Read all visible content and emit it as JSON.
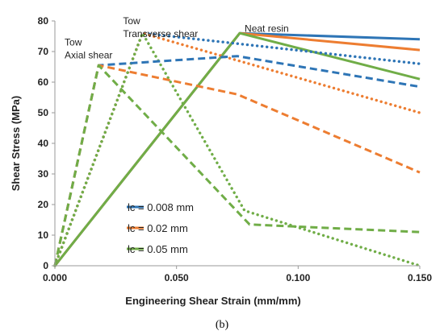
{
  "chart_data": {
    "type": "line",
    "xlabel": "Engineering Shear Strain (mm/mm)",
    "ylabel": "Shear Stress (MPa)",
    "xlim": [
      0,
      0.15
    ],
    "ylim": [
      0,
      80
    ],
    "x_ticks": [
      "0.000",
      "0.050",
      "0.100",
      "0.150"
    ],
    "x_tick_values": [
      0,
      0.05,
      0.1,
      0.15
    ],
    "y_ticks": [
      "0",
      "10",
      "20",
      "30",
      "40",
      "50",
      "60",
      "70",
      "80"
    ],
    "y_tick_values": [
      0,
      10,
      20,
      30,
      40,
      50,
      60,
      70,
      80
    ],
    "grid": false,
    "legend_position": "lower-left",
    "legend": [
      {
        "label": "lc = 0.008 mm",
        "color": "#2e75b6"
      },
      {
        "label": "lc = 0.02 mm",
        "color": "#ed7d31"
      },
      {
        "label": "lc = 0.05 mm",
        "color": "#70ad47"
      }
    ],
    "annotations": [
      {
        "lines": [
          "Tow",
          "Axial shear"
        ],
        "x": 0.004,
        "y": 72
      },
      {
        "lines": [
          "Tow",
          "Transverse shear"
        ],
        "x": 0.028,
        "y": 79
      },
      {
        "lines": [
          "Neat resin"
        ],
        "x": 0.078,
        "y": 76.5
      }
    ],
    "caption": "(b)",
    "series": [
      {
        "group": "Neat resin",
        "style": "solid",
        "color": "#2e75b6",
        "points": [
          [
            0,
            0
          ],
          [
            0.076,
            76
          ],
          [
            0.15,
            74
          ]
        ]
      },
      {
        "group": "Neat resin",
        "style": "solid",
        "color": "#ed7d31",
        "points": [
          [
            0,
            0
          ],
          [
            0.076,
            76
          ],
          [
            0.15,
            70.5
          ]
        ]
      },
      {
        "group": "Neat resin",
        "style": "solid",
        "color": "#70ad47",
        "points": [
          [
            0,
            0
          ],
          [
            0.076,
            76
          ],
          [
            0.15,
            61
          ]
        ]
      },
      {
        "group": "Tow transverse shear",
        "style": "dotted",
        "color": "#2e75b6",
        "points": [
          [
            0,
            0
          ],
          [
            0.036,
            76
          ],
          [
            0.15,
            66
          ]
        ]
      },
      {
        "group": "Tow transverse shear",
        "style": "dotted",
        "color": "#ed7d31",
        "points": [
          [
            0,
            0
          ],
          [
            0.036,
            76
          ],
          [
            0.15,
            50
          ]
        ]
      },
      {
        "group": "Tow transverse shear",
        "style": "dotted",
        "color": "#70ad47",
        "points": [
          [
            0,
            0
          ],
          [
            0.036,
            76
          ],
          [
            0.078,
            18
          ],
          [
            0.15,
            0
          ]
        ]
      },
      {
        "group": "Tow axial shear",
        "style": "dashed",
        "color": "#2e75b6",
        "points": [
          [
            0,
            0
          ],
          [
            0.018,
            65.5
          ],
          [
            0.075,
            68.5
          ],
          [
            0.15,
            58.5
          ]
        ]
      },
      {
        "group": "Tow axial shear",
        "style": "dashed",
        "color": "#ed7d31",
        "points": [
          [
            0,
            0
          ],
          [
            0.018,
            65.5
          ],
          [
            0.075,
            56
          ],
          [
            0.15,
            30.5
          ]
        ]
      },
      {
        "group": "Tow axial shear",
        "style": "dashed",
        "color": "#70ad47",
        "points": [
          [
            0,
            0
          ],
          [
            0.018,
            65.5
          ],
          [
            0.08,
            13.5
          ],
          [
            0.15,
            11
          ]
        ]
      }
    ]
  }
}
